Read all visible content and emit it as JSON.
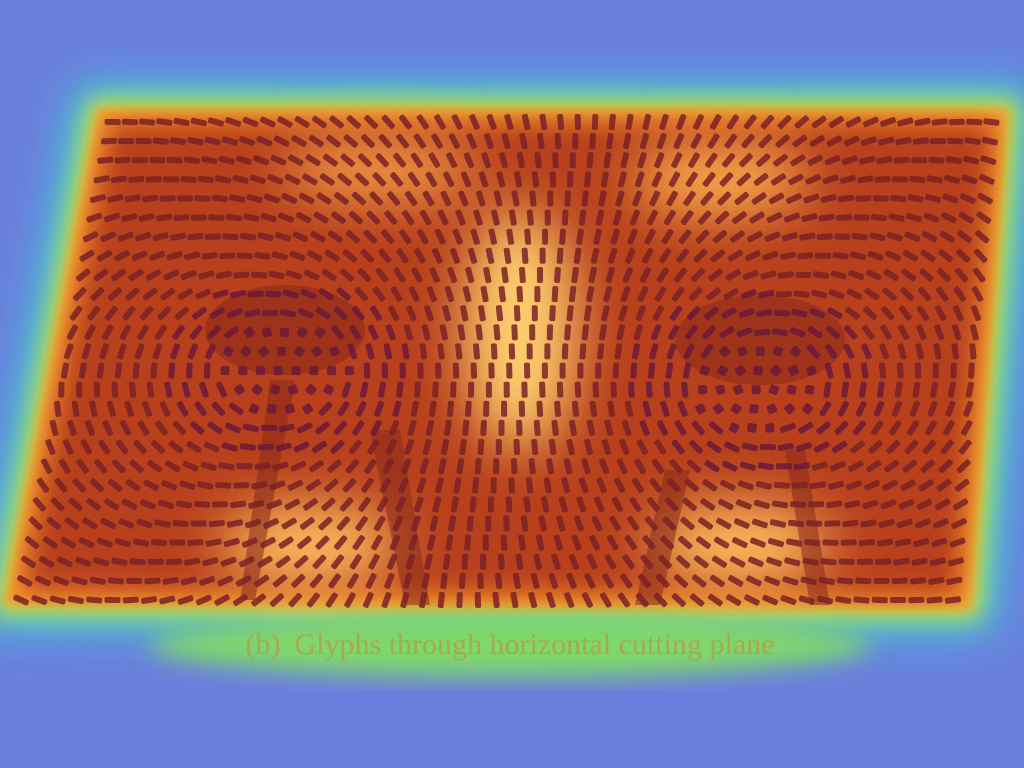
{
  "figure": {
    "label": "(b)",
    "caption": "Glyphs through horizontal cutting plane"
  }
}
